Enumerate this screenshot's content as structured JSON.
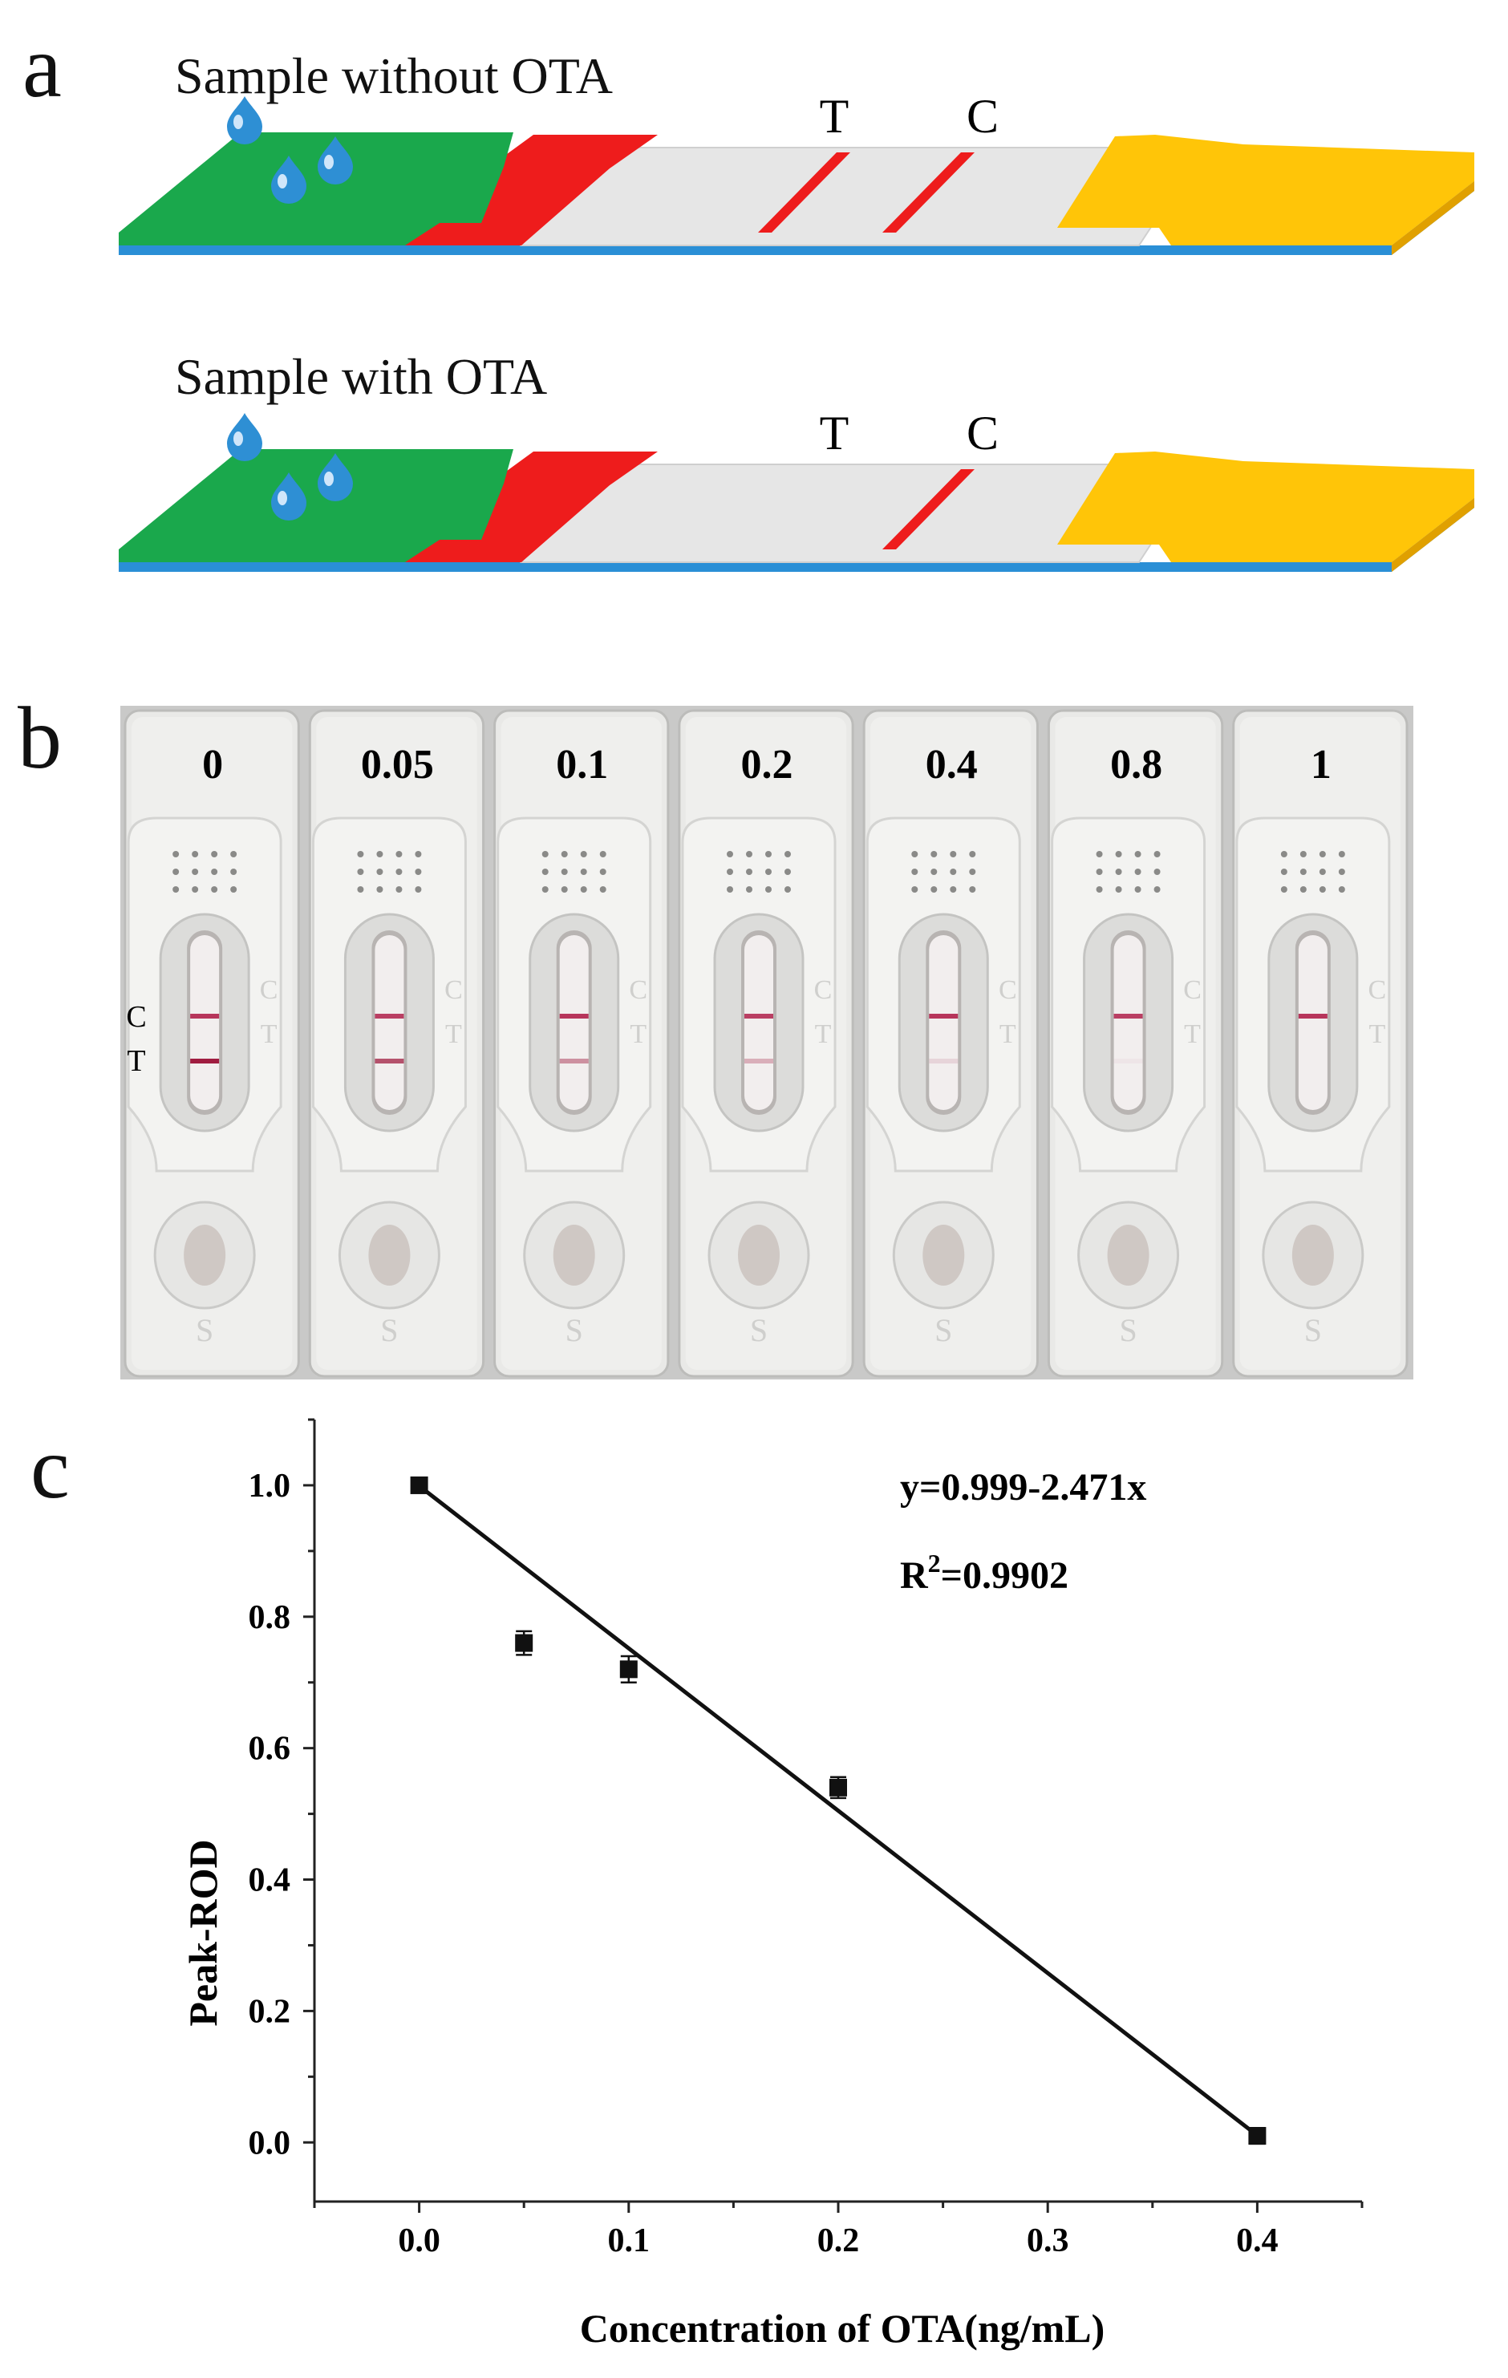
{
  "panel_a": {
    "letter": "a",
    "strips": [
      {
        "label": "Sample without OTA",
        "t_label": "T",
        "c_label": "C",
        "t_line": true,
        "c_line": true
      },
      {
        "label": "Sample with OTA",
        "t_label": "T",
        "c_label": "C",
        "t_line": false,
        "c_line": true
      }
    ],
    "colors": {
      "sample_pad": "#1aa84c",
      "conjugate_pad": "#ee1c1c",
      "membrane": "#e6e6e6",
      "absorbent_pad": "#ffc508",
      "backing": "#2a8fd6",
      "line": "#ee1c1c",
      "drop": "#2e8fd4"
    }
  },
  "panel_b": {
    "letter": "b",
    "concentrations": [
      "0",
      "0.05",
      "0.1",
      "0.2",
      "0.4",
      "0.8",
      "1"
    ],
    "side_labels": {
      "c": "C",
      "t": "T"
    },
    "cassette_c_mark": "C",
    "cassette_t_mark": "T",
    "cassette_s_mark": "S",
    "t_line_intensity": [
      1.0,
      0.75,
      0.45,
      0.3,
      0.12,
      0.04,
      0.0
    ],
    "c_line_intensity": [
      0.9,
      0.85,
      0.9,
      0.85,
      0.9,
      0.85,
      0.9
    ]
  },
  "panel_c": {
    "letter": "c",
    "chart_data": {
      "type": "scatter",
      "x": [
        0.0,
        0.05,
        0.1,
        0.2,
        0.4
      ],
      "y": [
        1.0,
        0.76,
        0.72,
        0.54,
        0.01
      ],
      "y_err": [
        0.005,
        0.018,
        0.02,
        0.016,
        0.012
      ],
      "fit": {
        "intercept": 0.999,
        "slope": -2.471
      },
      "equation": "y=0.999-2.471x",
      "r2_prefix": "R",
      "r2_sup": "2",
      "r2_suffix": "=0.9902",
      "xlabel": "Concentration of OTA(ng/mL)",
      "ylabel": "Peak-ROD",
      "xlim": [
        -0.05,
        0.45
      ],
      "ylim": [
        -0.09,
        1.1
      ],
      "xticks": [
        "0.0",
        "0.1",
        "0.2",
        "0.3",
        "0.4"
      ],
      "yticks": [
        "0.0",
        "0.2",
        "0.4",
        "0.6",
        "0.8",
        "1.0"
      ],
      "grid": false
    }
  }
}
